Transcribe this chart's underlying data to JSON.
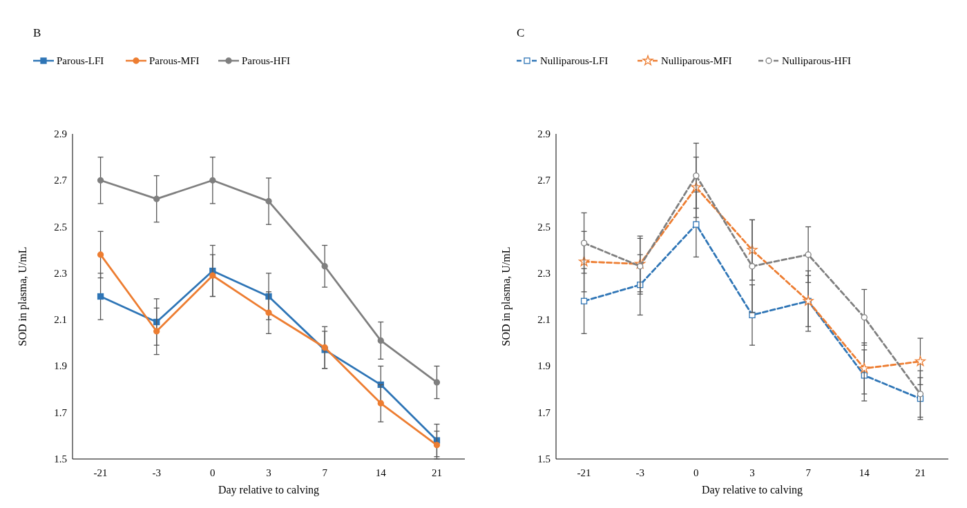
{
  "chart_data": [
    {
      "type": "line",
      "title": "B",
      "xlabel": "Day relative to calving",
      "ylabel": "SOD in plasma, U/mL",
      "categories": [
        "-21",
        "-3",
        "0",
        "3",
        "7",
        "14",
        "21"
      ],
      "ylim": [
        1.5,
        2.9
      ],
      "yticks": [
        1.5,
        1.7,
        1.9,
        2.1,
        2.3,
        2.5,
        2.7,
        2.9
      ],
      "legend": "top",
      "grid": false,
      "line_style": "solid",
      "series": [
        {
          "name": "Parous-LFI",
          "color": "#2e75b6",
          "marker": "square",
          "values": [
            2.2,
            2.09,
            2.31,
            2.2,
            1.97,
            1.82,
            1.58
          ],
          "errors": [
            0.1,
            0.1,
            0.11,
            0.1,
            0.08,
            0.08,
            0.07
          ]
        },
        {
          "name": "Parous-MFI",
          "color": "#ed7d31",
          "marker": "circle",
          "values": [
            2.38,
            2.05,
            2.29,
            2.13,
            1.98,
            1.74,
            1.56
          ],
          "errors": [
            0.1,
            0.1,
            0.09,
            0.09,
            0.09,
            0.08,
            0.06
          ]
        },
        {
          "name": "Parous-HFI",
          "color": "#7f7f7f",
          "marker": "circle",
          "values": [
            2.7,
            2.62,
            2.7,
            2.61,
            2.33,
            2.01,
            1.83
          ],
          "errors": [
            0.1,
            0.1,
            0.1,
            0.1,
            0.09,
            0.08,
            0.07
          ]
        }
      ]
    },
    {
      "type": "line",
      "title": "C",
      "xlabel": "Day relative to calving",
      "ylabel": "SOD in plasma, U/mL",
      "categories": [
        "-21",
        "-3",
        "0",
        "3",
        "7",
        "14",
        "21"
      ],
      "ylim": [
        1.5,
        2.9
      ],
      "yticks": [
        1.5,
        1.7,
        1.9,
        2.1,
        2.3,
        2.5,
        2.7,
        2.9
      ],
      "legend": "top",
      "grid": false,
      "line_style": "dashed",
      "series": [
        {
          "name": "Nulliparous-LFI",
          "color": "#2e75b6",
          "marker": "square",
          "values": [
            2.18,
            2.25,
            2.51,
            2.12,
            2.18,
            1.86,
            1.76
          ],
          "errors": [
            0.14,
            0.13,
            0.14,
            0.13,
            0.11,
            0.11,
            0.09
          ]
        },
        {
          "name": "Nulliparous-MFI",
          "color": "#ed7d31",
          "marker": "star",
          "values": [
            2.35,
            2.34,
            2.67,
            2.4,
            2.18,
            1.89,
            1.92
          ],
          "errors": [
            0.13,
            0.12,
            0.13,
            0.13,
            0.13,
            0.11,
            0.1
          ]
        },
        {
          "name": "Nulliparous-HFI",
          "color": "#7f7f7f",
          "marker": "circle",
          "values": [
            2.43,
            2.33,
            2.72,
            2.33,
            2.38,
            2.11,
            1.78
          ],
          "errors": [
            0.13,
            0.12,
            0.14,
            0.2,
            0.12,
            0.12,
            0.1
          ]
        }
      ]
    }
  ]
}
